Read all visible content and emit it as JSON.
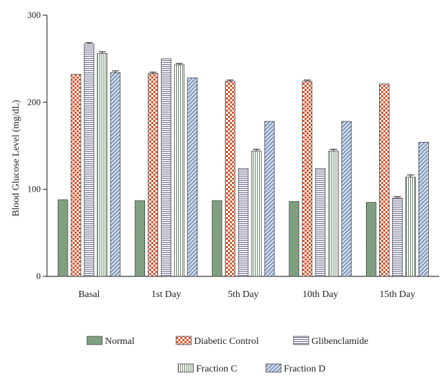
{
  "chart_data": {
    "type": "bar",
    "title": "",
    "xlabel": "",
    "ylabel": "Blood Glucose Level (mg/dL)",
    "ylim": [
      0,
      300
    ],
    "yticks": [
      0,
      100,
      200,
      300
    ],
    "categories": [
      "Basal",
      "1st Day",
      "5th Day",
      "10th Day",
      "15th Day"
    ],
    "legend_position": "bottom",
    "grid": false,
    "series": [
      {
        "name": "Normal",
        "values": [
          88,
          87,
          87,
          86,
          85
        ],
        "errors": [
          0,
          0,
          0,
          0,
          0
        ],
        "pattern": "dots",
        "color": "#7f9f7f"
      },
      {
        "name": "Diabetic Control",
        "values": [
          232,
          233,
          224,
          224,
          221
        ],
        "errors": [
          0,
          1.5,
          1.5,
          1.5,
          0
        ],
        "pattern": "checker",
        "color": "#d9532b"
      },
      {
        "name": "Glibenclamide",
        "values": [
          267,
          250,
          124,
          124,
          90
        ],
        "errors": [
          1.5,
          0,
          0,
          0,
          1.5
        ],
        "pattern": "hlines",
        "color": "#8e8ea8"
      },
      {
        "name": "Fraction C",
        "values": [
          256,
          243,
          144,
          144,
          114
        ],
        "errors": [
          2,
          1.5,
          2,
          2,
          2.5
        ],
        "pattern": "vlines",
        "color": "#8aaa8a"
      },
      {
        "name": "Fraction D",
        "values": [
          234,
          228,
          178,
          178,
          154
        ],
        "errors": [
          2,
          0,
          0,
          0,
          0
        ],
        "pattern": "diag",
        "color": "#8fa3c4"
      }
    ]
  }
}
